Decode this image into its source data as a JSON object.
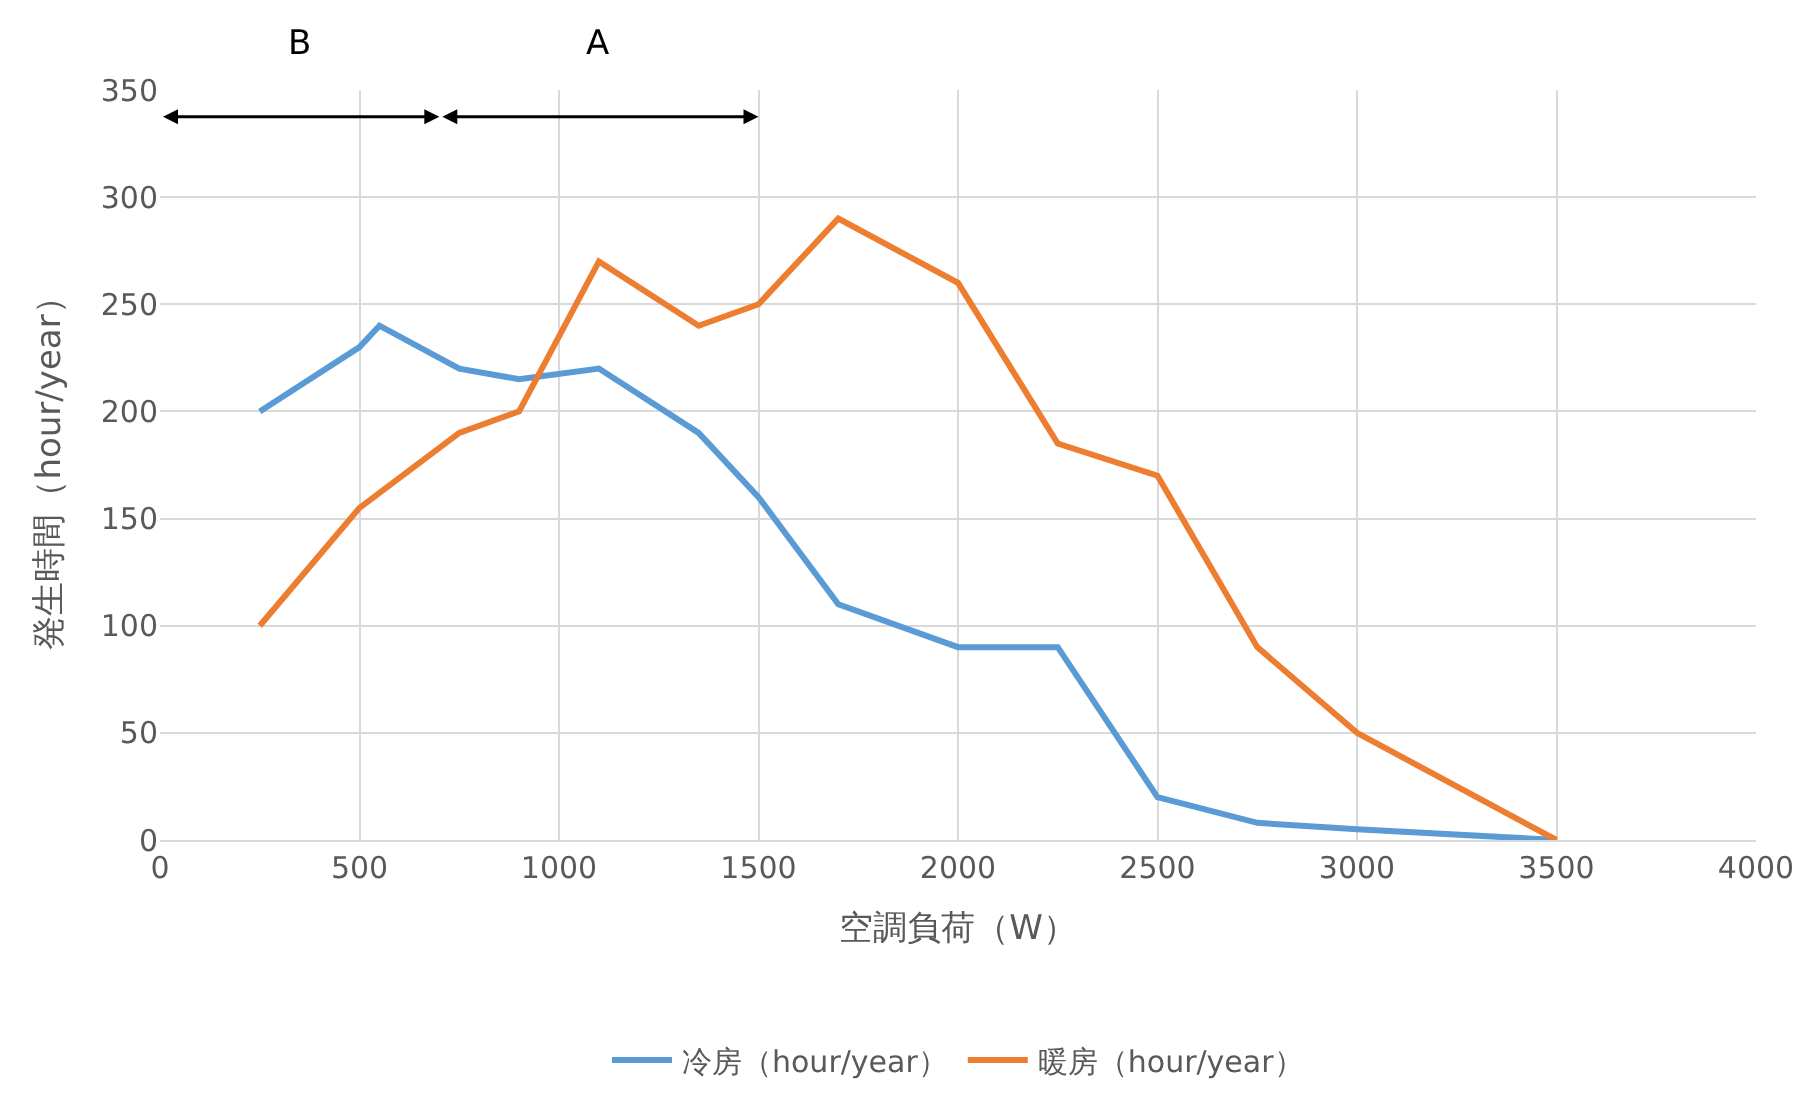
{
  "chart_data": {
    "type": "line",
    "xlabel": "空調負荷（W）",
    "ylabel": "発生時間（hour/year）",
    "series": [
      {
        "name": "冷房（hour/year）",
        "color": "#5b9bd5",
        "x": [
          250,
          500,
          550,
          750,
          900,
          1100,
          1350,
          1500,
          1700,
          2000,
          2250,
          2500,
          2750,
          3000,
          3500
        ],
        "values": [
          200,
          230,
          240,
          220,
          215,
          220,
          190,
          160,
          110,
          90,
          90,
          20,
          8,
          5,
          0
        ]
      },
      {
        "name": "暖房（hour/year）",
        "color": "#ed7d31",
        "x": [
          250,
          500,
          750,
          900,
          1100,
          1350,
          1500,
          1700,
          2000,
          2250,
          2500,
          2750,
          3000,
          3500
        ],
        "values": [
          100,
          155,
          190,
          200,
          270,
          240,
          250,
          290,
          260,
          185,
          170,
          90,
          50,
          0
        ]
      }
    ],
    "annotations": [
      "B",
      "A"
    ],
    "xlim": [
      0,
      4000
    ],
    "xticks": [
      0,
      500,
      1000,
      1500,
      2000,
      2500,
      3000,
      3500,
      4000
    ],
    "ylim": [
      0,
      350
    ],
    "yticks": [
      0,
      50,
      100,
      150,
      200,
      250,
      300,
      350
    ],
    "grid": true,
    "legend": "bottom",
    "marker": "none",
    "line_style": "solid"
  }
}
